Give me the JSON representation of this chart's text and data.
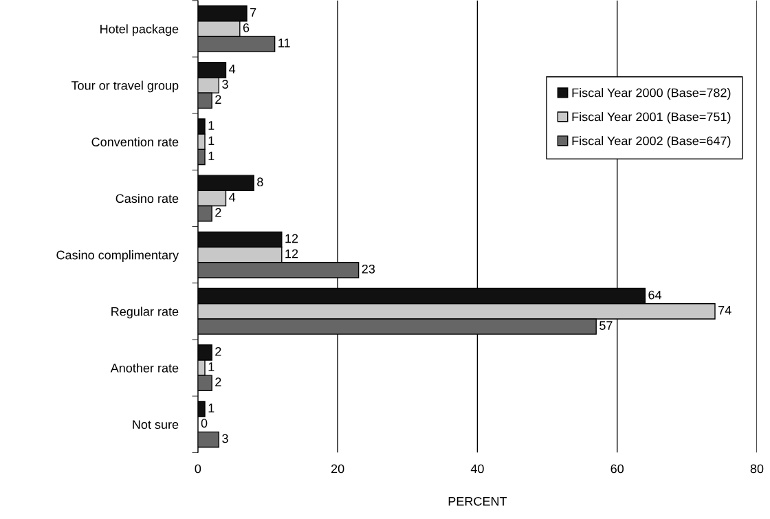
{
  "chart_data": {
    "type": "bar",
    "orientation": "horizontal",
    "xlabel": "PERCENT",
    "categories": [
      "Hotel package",
      "Tour or travel group",
      "Convention rate",
      "Casino rate",
      "Casino complimentary",
      "Regular rate",
      "Another rate",
      "Not sure"
    ],
    "series": [
      {
        "name": "Fiscal Year 2000 (Base=782)",
        "color": "#111111",
        "values": [
          7,
          4,
          1,
          8,
          12,
          64,
          2,
          1
        ]
      },
      {
        "name": "Fiscal Year 2001 (Base=751)",
        "color": "#c8c8c8",
        "values": [
          6,
          3,
          1,
          4,
          12,
          74,
          1,
          0
        ]
      },
      {
        "name": "Fiscal Year 2002 (Base=647)",
        "color": "#666666",
        "values": [
          11,
          2,
          1,
          2,
          23,
          57,
          2,
          3
        ]
      }
    ],
    "xlim": [
      0,
      80
    ],
    "xticks": [
      0,
      20,
      40,
      60,
      80
    ],
    "grid": "x",
    "legend": "top right",
    "data_labels": true
  }
}
